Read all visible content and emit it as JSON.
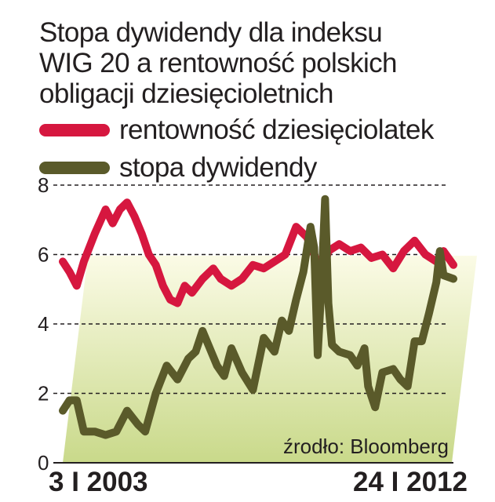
{
  "chart_data": {
    "type": "line",
    "title_lines": [
      "Stopa dywidendy dla indeksu",
      "WIG 20 a rentowność polskich",
      "obligacji dziesięcioletnich"
    ],
    "x_labels": [
      "3 I 2003",
      "24 I 2012"
    ],
    "ylim": [
      0,
      8
    ],
    "yticks": [
      "0",
      "2",
      "4",
      "6",
      "8"
    ],
    "grid": true,
    "source": "źrodło: Bloomberg",
    "legend_position": "top-left",
    "x_start": "2003-01-03",
    "x_end": "2012-01-24",
    "series": [
      {
        "name": "rentowność dziesięciolatek",
        "color": "#d6173f",
        "points": [
          [
            "2003-01-03",
            5.8
          ],
          [
            "2003-03-01",
            5.5
          ],
          [
            "2003-05-01",
            5.1
          ],
          [
            "2003-07-01",
            5.8
          ],
          [
            "2003-10-01",
            6.6
          ],
          [
            "2004-01-01",
            7.3
          ],
          [
            "2004-03-01",
            6.9
          ],
          [
            "2004-05-01",
            7.3
          ],
          [
            "2004-07-01",
            7.5
          ],
          [
            "2004-09-01",
            7.1
          ],
          [
            "2004-11-01",
            6.6
          ],
          [
            "2005-01-01",
            6.0
          ],
          [
            "2005-03-01",
            5.7
          ],
          [
            "2005-05-01",
            5.1
          ],
          [
            "2005-07-01",
            4.7
          ],
          [
            "2005-09-01",
            4.6
          ],
          [
            "2005-11-01",
            5.1
          ],
          [
            "2006-01-01",
            4.9
          ],
          [
            "2006-04-01",
            5.3
          ],
          [
            "2006-07-01",
            5.6
          ],
          [
            "2006-09-01",
            5.3
          ],
          [
            "2006-12-01",
            5.1
          ],
          [
            "2007-03-01",
            5.3
          ],
          [
            "2007-06-01",
            5.7
          ],
          [
            "2007-09-01",
            5.6
          ],
          [
            "2007-12-01",
            5.8
          ],
          [
            "2008-03-01",
            6.0
          ],
          [
            "2008-06-01",
            6.8
          ],
          [
            "2008-09-01",
            6.5
          ],
          [
            "2008-11-01",
            6.0
          ],
          [
            "2009-01-01",
            5.4
          ],
          [
            "2009-03-01",
            6.1
          ],
          [
            "2009-06-01",
            6.3
          ],
          [
            "2009-09-01",
            6.1
          ],
          [
            "2009-12-01",
            6.2
          ],
          [
            "2010-03-01",
            5.9
          ],
          [
            "2010-06-01",
            6.0
          ],
          [
            "2010-09-01",
            5.6
          ],
          [
            "2010-12-01",
            6.1
          ],
          [
            "2011-03-01",
            6.4
          ],
          [
            "2011-06-01",
            6.0
          ],
          [
            "2011-09-01",
            5.8
          ],
          [
            "2011-11-01",
            6.1
          ],
          [
            "2012-01-24",
            5.7
          ]
        ]
      },
      {
        "name": "stopa dywidendy",
        "color": "#5a5a2a",
        "points": [
          [
            "2003-01-03",
            1.5
          ],
          [
            "2003-03-01",
            1.8
          ],
          [
            "2003-05-01",
            1.8
          ],
          [
            "2003-07-01",
            0.9
          ],
          [
            "2003-10-01",
            0.9
          ],
          [
            "2004-01-01",
            0.8
          ],
          [
            "2004-04-01",
            0.9
          ],
          [
            "2004-07-01",
            1.5
          ],
          [
            "2004-10-01",
            1.1
          ],
          [
            "2004-12-01",
            0.9
          ],
          [
            "2005-03-01",
            2.0
          ],
          [
            "2005-06-01",
            2.8
          ],
          [
            "2005-09-01",
            2.4
          ],
          [
            "2005-12-01",
            3.0
          ],
          [
            "2006-02-01",
            3.2
          ],
          [
            "2006-04-01",
            3.8
          ],
          [
            "2006-06-01",
            3.3
          ],
          [
            "2006-08-01",
            2.8
          ],
          [
            "2006-10-01",
            2.5
          ],
          [
            "2006-12-01",
            3.3
          ],
          [
            "2007-03-01",
            2.6
          ],
          [
            "2007-06-01",
            2.1
          ],
          [
            "2007-09-01",
            3.6
          ],
          [
            "2007-12-01",
            3.2
          ],
          [
            "2008-02-01",
            4.1
          ],
          [
            "2008-04-01",
            3.8
          ],
          [
            "2008-06-01",
            4.7
          ],
          [
            "2008-08-01",
            5.5
          ],
          [
            "2008-10-01",
            6.8
          ],
          [
            "2008-11-01",
            6.2
          ],
          [
            "2008-12-01",
            3.1
          ],
          [
            "2009-01-01",
            5.1
          ],
          [
            "2009-02-01",
            7.6
          ],
          [
            "2009-03-01",
            4.6
          ],
          [
            "2009-04-01",
            3.4
          ],
          [
            "2009-06-01",
            3.2
          ],
          [
            "2009-09-01",
            3.1
          ],
          [
            "2009-11-01",
            2.8
          ],
          [
            "2010-01-01",
            3.3
          ],
          [
            "2010-02-01",
            2.2
          ],
          [
            "2010-04-01",
            1.6
          ],
          [
            "2010-06-01",
            2.6
          ],
          [
            "2010-09-01",
            2.7
          ],
          [
            "2010-11-01",
            2.4
          ],
          [
            "2011-01-01",
            2.2
          ],
          [
            "2011-03-01",
            3.5
          ],
          [
            "2011-05-01",
            3.5
          ],
          [
            "2011-07-01",
            4.3
          ],
          [
            "2011-09-01",
            5.2
          ],
          [
            "2011-10-01",
            6.1
          ],
          [
            "2011-11-01",
            5.4
          ],
          [
            "2012-01-24",
            5.3
          ]
        ]
      }
    ]
  }
}
